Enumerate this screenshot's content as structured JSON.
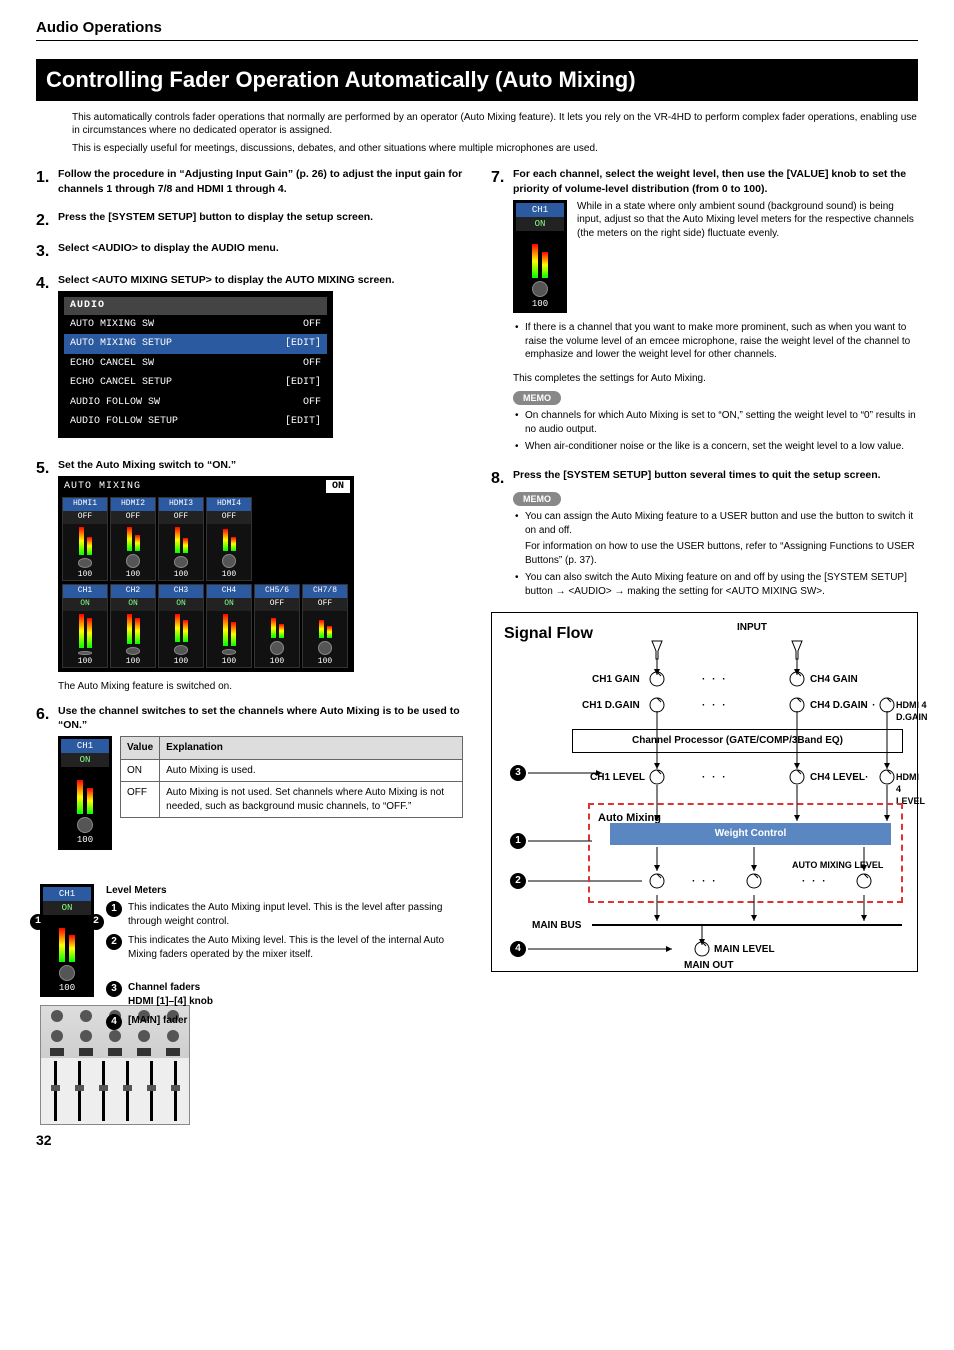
{
  "section_header": "Audio Operations",
  "title": "Controlling Fader Operation Automatically (Auto Mixing)",
  "intro": [
    "This automatically controls fader operations that normally are performed by an operator (Auto Mixing feature). It lets you rely on the VR-4HD to perform complex fader operations, enabling use in circumstances where no dedicated operator is assigned.",
    "This is especially useful for meetings, discussions, debates, and other situations where multiple microphones are used."
  ],
  "steps": {
    "s1": "Follow the procedure in “Adjusting Input Gain” (p. 26) to adjust the input gain for channels 1 through 7/8 and HDMI 1 through 4.",
    "s2": "Press the [SYSTEM SETUP] button to display the setup screen.",
    "s3": "Select <AUDIO> to display the AUDIO menu.",
    "s4": "Select <AUTO MIXING SETUP> to display the AUTO MIXING screen.",
    "s5": "Set the Auto Mixing switch to “ON.”",
    "s5_after": "The Auto Mixing feature is switched on.",
    "s6": "Use the channel switches to set the channels where Auto Mixing is to be used to “ON.”",
    "s7": "For each channel, select the weight level, then use the [VALUE] knob to set the priority of volume-level distribution (from 0 to 100).",
    "s7_body": "While in a state where only ambient sound (background sound) is being input, adjust so that the Auto Mixing level meters for the respective channels (the meters on the right side) fluctuate evenly.",
    "s7_bullet": "If there is a channel that you want to make more prominent, such as when you want to raise the volume level of an emcee microphone, raise the weight level of the channel to emphasize and lower the weight level for other channels.",
    "s7_done": "This completes the settings for Auto Mixing.",
    "s7_memo1": "On channels for which Auto Mixing is set to “ON,” setting the weight level to “0” results in no audio output.",
    "s7_memo2": "When air-conditioner noise or the like is a concern, set the weight level to a low value.",
    "s8": "Press the [SYSTEM SETUP] button several times to quit the setup screen.",
    "s8_memo1": "You can assign the Auto Mixing feature to a USER button and use the button to switch it on and off.",
    "s8_memo1b": "For information on how to use the USER buttons, refer to “Assigning Functions to USER Buttons” (p. 37).",
    "s8_memo2": "You can also switch the Auto Mixing feature on and off by using the [SYSTEM SETUP] button → <AUDIO> → making the setting for <AUTO MIXING SW>."
  },
  "memo_label": "MEMO",
  "audio_menu": {
    "title": "AUDIO",
    "rows": [
      {
        "l": "AUTO MIXING SW",
        "r": "OFF",
        "sel": false
      },
      {
        "l": "AUTO MIXING SETUP",
        "r": "[EDIT]",
        "sel": true
      },
      {
        "l": "ECHO CANCEL SW",
        "r": "OFF",
        "sel": false
      },
      {
        "l": "ECHO CANCEL SETUP",
        "r": "[EDIT]",
        "sel": false
      },
      {
        "l": "AUDIO FOLLOW SW",
        "r": "OFF",
        "sel": false
      },
      {
        "l": "AUDIO FOLLOW SETUP",
        "r": "[EDIT]",
        "sel": false
      }
    ]
  },
  "amx": {
    "title": "AUTO MIXING",
    "on": "ON",
    "row1": [
      {
        "lab": "HDMI1",
        "st": "OFF",
        "h1": 28,
        "h2": 18,
        "v": "100"
      },
      {
        "lab": "HDMI2",
        "st": "OFF",
        "h1": 24,
        "h2": 16,
        "v": "100"
      },
      {
        "lab": "HDMI3",
        "st": "OFF",
        "h1": 26,
        "h2": 15,
        "v": "100"
      },
      {
        "lab": "HDMI4",
        "st": "OFF",
        "h1": 22,
        "h2": 14,
        "v": "100"
      }
    ],
    "row2": [
      {
        "lab": "CH1",
        "st": "ON",
        "h1": 34,
        "h2": 30,
        "v": "100"
      },
      {
        "lab": "CH2",
        "st": "ON",
        "h1": 30,
        "h2": 26,
        "v": "100"
      },
      {
        "lab": "CH3",
        "st": "ON",
        "h1": 28,
        "h2": 22,
        "v": "100"
      },
      {
        "lab": "CH4",
        "st": "ON",
        "h1": 32,
        "h2": 24,
        "v": "100"
      },
      {
        "lab": "CH5/6",
        "st": "OFF",
        "h1": 20,
        "h2": 14,
        "v": "100"
      },
      {
        "lab": "CH7/8",
        "st": "OFF",
        "h1": 18,
        "h2": 12,
        "v": "100"
      }
    ]
  },
  "table6": {
    "head": {
      "c1": "Value",
      "c2": "Explanation"
    },
    "r1": {
      "c1": "ON",
      "c2": "Auto Mixing is used."
    },
    "r2": {
      "c1": "OFF",
      "c2": "Auto Mixing is not used. Set channels where Auto Mixing is not needed, such as background music channels, to “OFF.”"
    }
  },
  "step6_tile": {
    "lab": "CH1",
    "st": "ON",
    "v": "100"
  },
  "step7_tile": {
    "lab": "CH1",
    "st": "ON",
    "v": "100"
  },
  "meter_note": {
    "title": "Level Meters",
    "n1": "This indicates the Auto Mixing input level. This is the level after passing through weight control.",
    "n2": "This indicates the Auto Mixing level. This is the level of the internal Auto Mixing faders operated by the mixer itself.",
    "n3a": "Channel faders",
    "n3b": "HDMI [1]–[4] knob",
    "n4": "[MAIN] fader"
  },
  "sigflow": {
    "title": "Signal Flow",
    "input": "INPUT",
    "ch1gain": "CH1 GAIN",
    "ch4gain": "CH4 GAIN",
    "ch1dgain": "CH1 D.GAIN",
    "ch4dgain": "CH4 D.GAIN",
    "hdmi4dgain": "HDMI 4 D.GAIN",
    "chanproc": "Channel Processor (GATE/COMP/3Band EQ)",
    "ch1level": "CH1 LEVEL",
    "ch4level": "CH4 LEVEL",
    "hdmi4level": "HDMI 4 LEVEL",
    "automix": "Auto Mixing",
    "weight": "Weight Control",
    "amlevel": "AUTO MIXING LEVEL",
    "mainbus": "MAIN BUS",
    "mainlevel": "MAIN LEVEL",
    "mainout": "MAIN OUT",
    "dots": "· · ·",
    "colors": {
      "dash": "#d33",
      "weight_bg": "#5a87c2"
    }
  },
  "pagenum": "32"
}
